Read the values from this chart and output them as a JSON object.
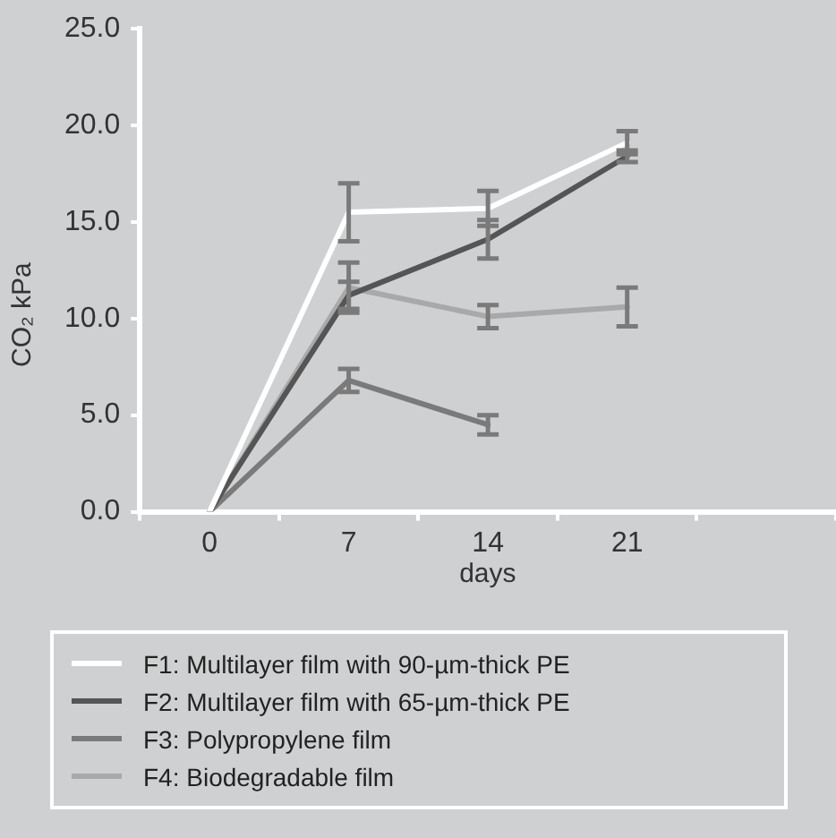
{
  "chart_data": {
    "type": "line",
    "xlabel": "days",
    "ylabel": "CO₂ kPa",
    "categories": [
      "0",
      "7",
      "14",
      "21",
      null
    ],
    "series": [
      {
        "name": "F1: Multilayer film with 90-µm-thick PE",
        "color": "#ffffff",
        "values": [
          0,
          15.5,
          15.7,
          19.1,
          null
        ],
        "errors": [
          null,
          1.5,
          0.9,
          0.6,
          null
        ]
      },
      {
        "name": "F2: Multilayer film with 65-µm-thick PE",
        "color": "#555555",
        "values": [
          0,
          11.2,
          14.1,
          18.4,
          null
        ],
        "errors": [
          null,
          0.7,
          1.0,
          0.3,
          null
        ]
      },
      {
        "name": "F3: Polypropylene film",
        "color": "#7a7a7a",
        "values": [
          0,
          6.8,
          4.5,
          null,
          null
        ],
        "errors": [
          null,
          0.6,
          0.5,
          null,
          null
        ]
      },
      {
        "name": "F4: Biodegradable film",
        "color": "#a9a9a9",
        "values": [
          0,
          11.6,
          10.1,
          10.6,
          null
        ],
        "errors": [
          null,
          1.3,
          0.6,
          1.0,
          null
        ]
      }
    ],
    "ylim": [
      0,
      25
    ],
    "yticks": [
      {
        "value": 0,
        "label": "0.0"
      },
      {
        "value": 5,
        "label": "5.0"
      },
      {
        "value": 10,
        "label": "10.0"
      },
      {
        "value": 15,
        "label": "15.0"
      },
      {
        "value": 20,
        "label": "20.0"
      },
      {
        "value": 25,
        "label": "25.0"
      }
    ],
    "grid": false,
    "legend": "bottom",
    "line_style": "solid"
  }
}
